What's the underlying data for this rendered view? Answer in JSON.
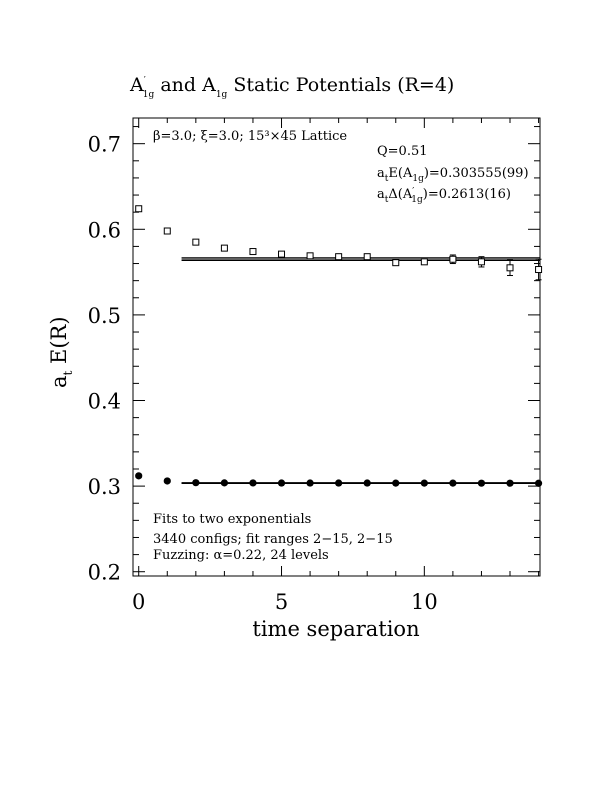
{
  "chart_data": {
    "type": "scatter",
    "title": "A′1g and A1g Static Potentials (R=4)",
    "xlabel": "time separation",
    "ylabel": "at E(R)",
    "xlim": [
      -0.2,
      14.05
    ],
    "ylim": [
      0.195,
      0.73
    ],
    "x_ticks": [
      "0",
      "5",
      "10"
    ],
    "y_ticks": [
      "0.2",
      "0.3",
      "0.4",
      "0.5",
      "0.6",
      "0.7"
    ],
    "annotations": {
      "lattice": "β=3.0; ξ=3.0; 15³×45 Lattice",
      "q": "Q=0.51",
      "energy": "atE(A1g)=0.303555(99)",
      "gap": "atΔ(A′1g)=0.2613(16)",
      "fits": "Fits to two exponentials",
      "configs": "3440 configs; fit ranges 2−15, 2−15",
      "fuzzing": "Fuzzing: α=0.22, 24 levels"
    },
    "series": [
      {
        "marker": "open-square",
        "x": [
          0,
          1,
          2,
          3,
          4,
          5,
          6,
          7,
          8,
          9,
          10,
          11,
          12,
          13,
          14
        ],
        "y": [
          0.624,
          0.598,
          0.585,
          0.578,
          0.574,
          0.571,
          0.569,
          0.568,
          0.568,
          0.561,
          0.562,
          0.565,
          0.562,
          0.555,
          0.553
        ],
        "err": [
          0.001,
          0.001,
          0.001,
          0.001,
          0.001,
          0.002,
          0.002,
          0.002,
          0.002,
          0.003,
          0.003,
          0.005,
          0.006,
          0.009,
          0.012
        ]
      },
      {
        "marker": "filled-circle",
        "x": [
          0,
          1,
          2,
          3,
          4,
          5,
          6,
          7,
          8,
          9,
          10,
          11,
          12,
          13,
          14
        ],
        "y": [
          0.312,
          0.306,
          0.304,
          0.3038,
          0.3037,
          0.3036,
          0.3036,
          0.3036,
          0.3036,
          0.3035,
          0.3035,
          0.3035,
          0.3034,
          0.3034,
          0.3033
        ],
        "err": [
          0,
          0,
          0,
          0,
          0,
          0,
          0,
          0,
          0,
          0,
          0,
          0,
          0,
          0,
          0
        ]
      }
    ],
    "fit_bands": [
      {
        "x_range": [
          1.5,
          14.05
        ],
        "center": 0.5651,
        "half_width": 0.0016
      },
      {
        "x_range": [
          1.5,
          14.05
        ],
        "center": 0.30356,
        "half_width": 0.0005
      }
    ]
  }
}
